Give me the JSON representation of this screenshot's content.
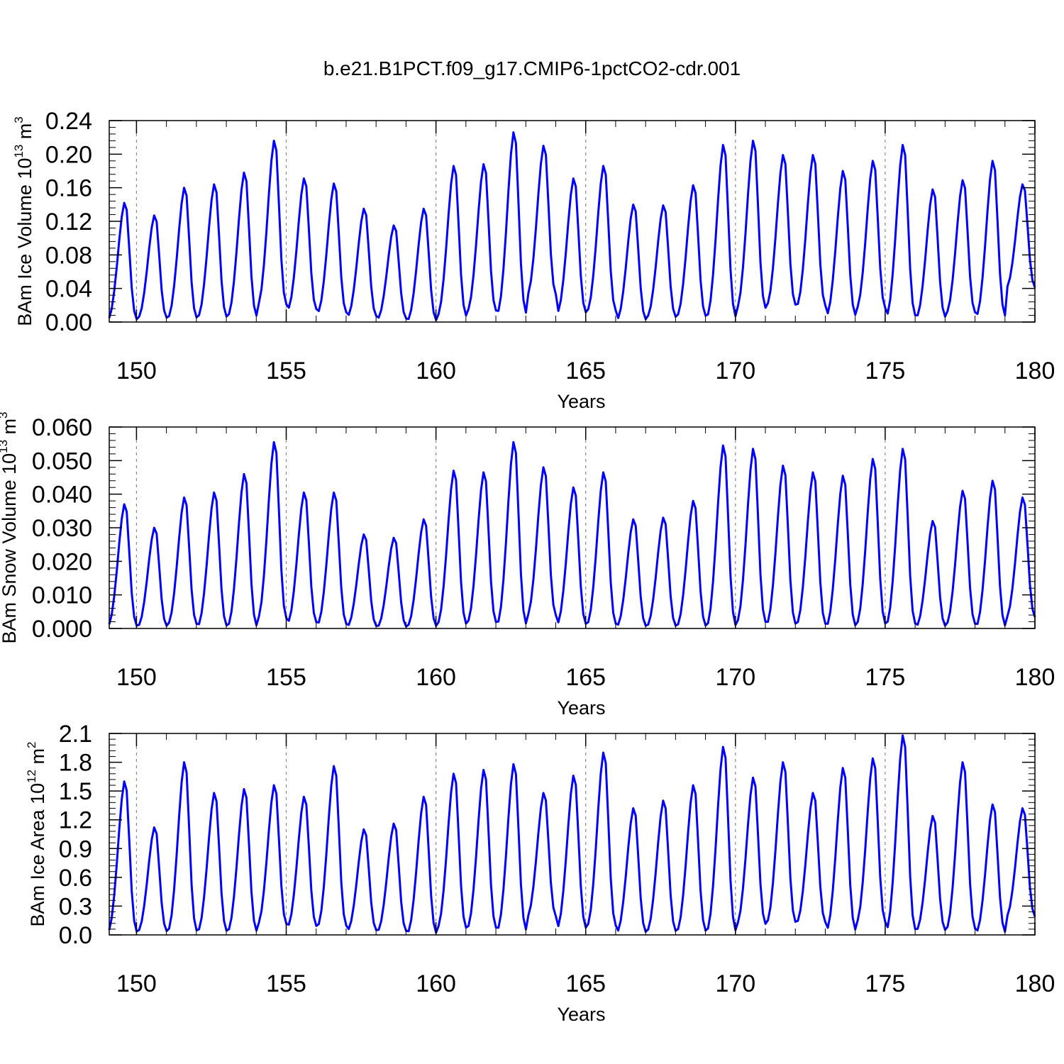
{
  "title": "b.e21.B1PCT.f09_g17.CMIP6-1pctCO2-cdr.001",
  "chart_data": [
    {
      "type": "line",
      "ylabel": {
        "text": "BAm Ice Volume 10",
        "exp": "13",
        "unit": " m",
        "unit_exp": "3"
      },
      "xlabel": "Years",
      "xlim": [
        149.09,
        180.0
      ],
      "ylim": [
        0,
        0.24
      ],
      "xticks": [
        150,
        155,
        160,
        165,
        170,
        175,
        180
      ],
      "xtick_labels": [
        "150",
        "155",
        "160",
        "165",
        "170",
        "175",
        "180"
      ],
      "yticks": [
        0,
        0.04,
        0.08,
        0.12,
        0.16,
        0.2,
        0.24
      ],
      "ytick_labels": [
        "0.00",
        "0.04",
        "0.08",
        "0.12",
        "0.16",
        "0.20",
        "0.24"
      ],
      "ref_lines": [
        150,
        155,
        160,
        165,
        170,
        175
      ],
      "color": "#0000ff",
      "grid": false,
      "series": [
        {
          "annual_peaks": [
            0.142,
            0.127,
            0.16,
            0.164,
            0.178,
            0.216,
            0.171,
            0.165,
            0.135,
            0.115,
            0.135,
            0.186,
            0.188,
            0.226,
            0.21,
            0.171,
            0.186,
            0.14,
            0.139,
            0.163,
            0.211,
            0.216,
            0.199,
            0.199,
            0.18,
            0.192,
            0.211,
            0.158,
            0.169,
            0.192,
            0.164
          ],
          "annual_troughs": [
            0.002,
            0.004,
            0.004,
            0.005,
            0.006,
            0.019,
            0.014,
            0.01,
            0.006,
            0.003,
            0.001,
            0.006,
            0.012,
            0.009,
            0.031,
            0.01,
            0.012,
            0.002,
            0.005,
            0.006,
            0.005,
            0.015,
            0.019,
            0.018,
            0.007,
            0.015,
            0.006,
            0.005,
            0.01,
            0.006,
            0.04
          ]
        }
      ]
    },
    {
      "type": "line",
      "ylabel": {
        "text": "BAm Snow Volume 10",
        "exp": "13",
        "unit": " m",
        "unit_exp": "3"
      },
      "xlabel": "Years",
      "xlim": [
        149.09,
        180.0
      ],
      "ylim": [
        0,
        0.06
      ],
      "xticks": [
        150,
        155,
        160,
        165,
        170,
        175,
        180
      ],
      "xtick_labels": [
        "150",
        "155",
        "160",
        "165",
        "170",
        "175",
        "180"
      ],
      "yticks": [
        0,
        0.01,
        0.02,
        0.03,
        0.04,
        0.05,
        0.06
      ],
      "ytick_labels": [
        "0.000",
        "0.010",
        "0.020",
        "0.030",
        "0.040",
        "0.050",
        "0.060"
      ],
      "ref_lines": [
        150,
        155,
        160,
        165,
        170,
        175
      ],
      "color": "#0000ff",
      "grid": false,
      "series": [
        {
          "annual_peaks": [
            0.037,
            0.03,
            0.039,
            0.0405,
            0.046,
            0.0555,
            0.0405,
            0.0405,
            0.028,
            0.027,
            0.0325,
            0.047,
            0.0465,
            0.0555,
            0.048,
            0.042,
            0.0465,
            0.0325,
            0.033,
            0.038,
            0.0545,
            0.0535,
            0.0485,
            0.0465,
            0.0455,
            0.0505,
            0.0535,
            0.032,
            0.041,
            0.044,
            0.039
          ],
          "annual_troughs": [
            0.0005,
            0.0005,
            0.001,
            0.0005,
            0.0005,
            0.0025,
            0.0015,
            0.001,
            0.0005,
            0.0003,
            0.0005,
            0.001,
            0.0015,
            0.001,
            0.0035,
            0.001,
            0.001,
            0.0005,
            0.0005,
            0.0005,
            0.0005,
            0.0015,
            0.001,
            0.001,
            0.0005,
            0.001,
            0.001,
            0.0005,
            0.001,
            0.0005,
            0.003
          ]
        }
      ]
    },
    {
      "type": "line",
      "ylabel": {
        "text": "BAm Ice Area 10",
        "exp": "12",
        "unit": " m",
        "unit_exp": "2"
      },
      "xlabel": "Years",
      "xlim": [
        149.09,
        180.0
      ],
      "ylim": [
        0,
        2.1
      ],
      "xticks": [
        150,
        155,
        160,
        165,
        170,
        175,
        180
      ],
      "xtick_labels": [
        "150",
        "155",
        "160",
        "165",
        "170",
        "175",
        "180"
      ],
      "yticks": [
        0,
        0.3,
        0.6,
        0.9,
        1.2,
        1.5,
        1.8,
        2.1
      ],
      "ytick_labels": [
        "0.0",
        "0.3",
        "0.6",
        "0.9",
        "1.2",
        "1.5",
        "1.8",
        "2.1"
      ],
      "ref_lines": [
        150,
        155,
        160,
        165,
        170,
        175
      ],
      "color": "#0000ff",
      "grid": false,
      "series": [
        {
          "annual_peaks": [
            1.6,
            1.12,
            1.8,
            1.48,
            1.52,
            1.56,
            1.44,
            1.76,
            1.1,
            1.16,
            1.44,
            1.68,
            1.72,
            1.78,
            1.48,
            1.66,
            1.9,
            1.32,
            1.4,
            1.56,
            1.96,
            1.64,
            1.8,
            1.48,
            1.74,
            1.84,
            2.08,
            1.24,
            1.8,
            1.36,
            1.32
          ],
          "annual_troughs": [
            0.02,
            0.03,
            0.03,
            0.03,
            0.03,
            0.1,
            0.08,
            0.08,
            0.04,
            0.03,
            0.01,
            0.06,
            0.06,
            0.04,
            0.18,
            0.06,
            0.08,
            0.02,
            0.03,
            0.03,
            0.03,
            0.1,
            0.12,
            0.12,
            0.04,
            0.12,
            0.04,
            0.04,
            0.05,
            0.02,
            0.18
          ]
        }
      ]
    }
  ]
}
